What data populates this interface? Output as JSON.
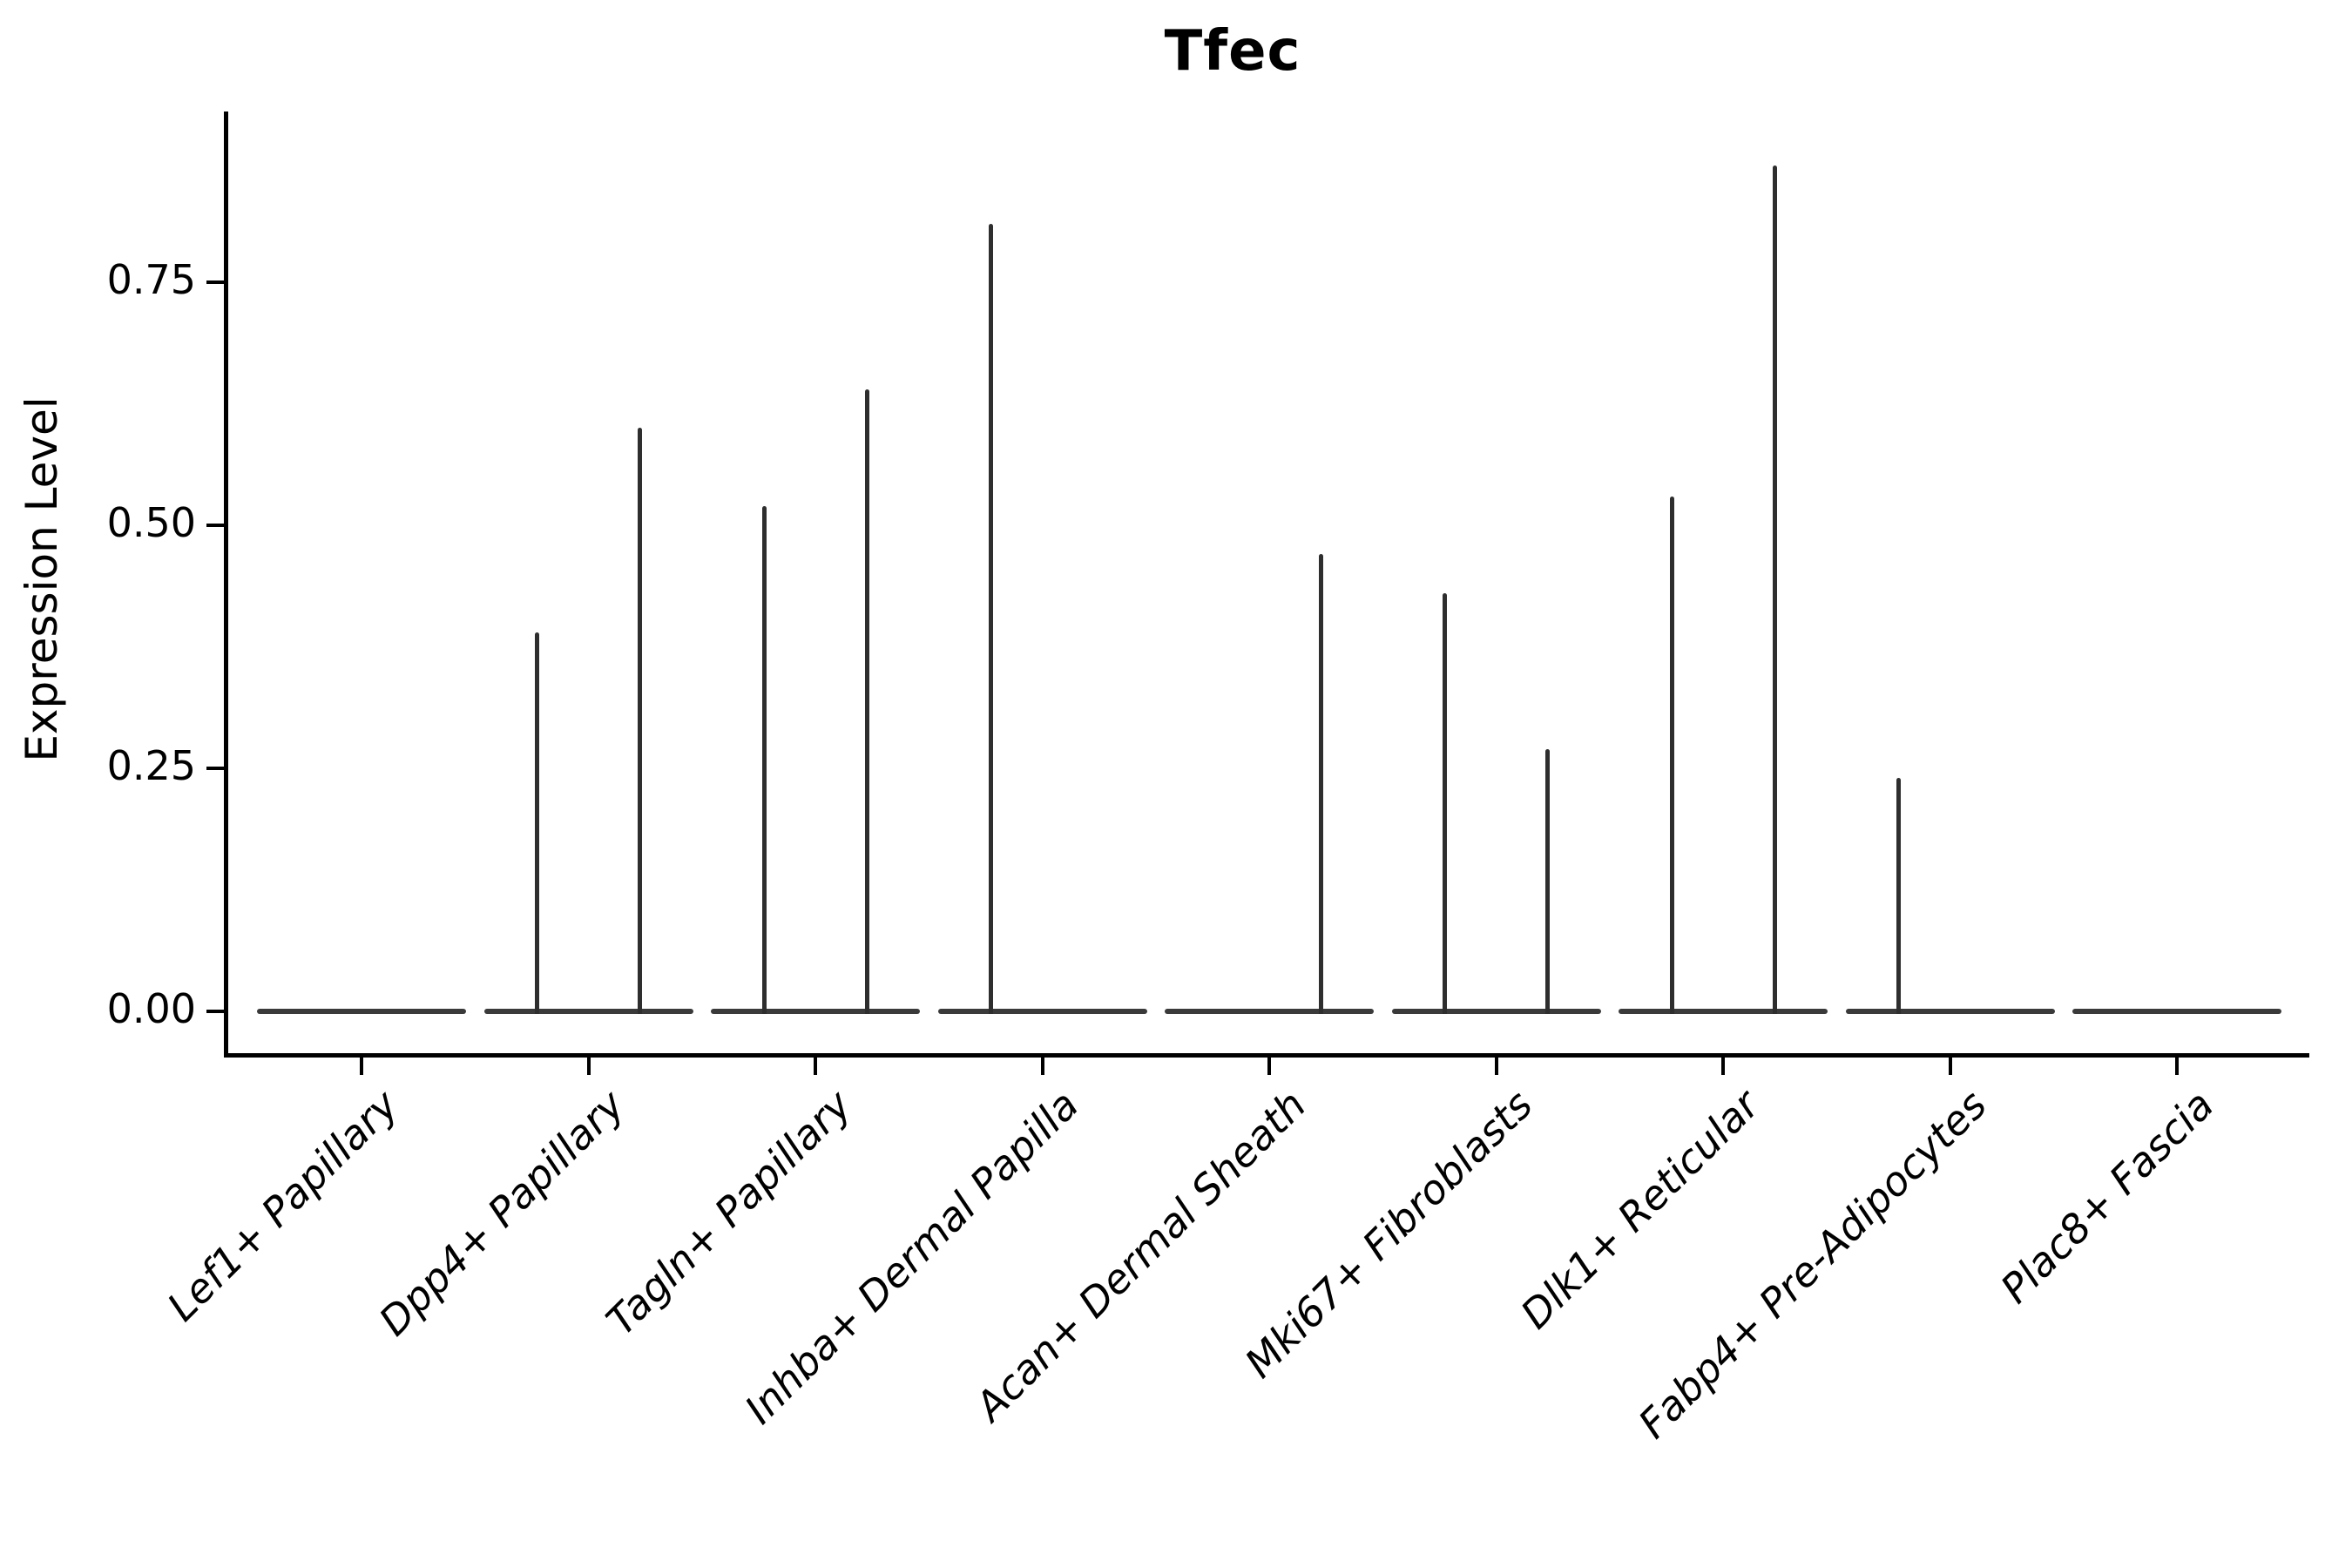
{
  "title": "Tfec",
  "chart_data": {
    "type": "violin",
    "title": "Tfec",
    "xlabel": "",
    "ylabel": "Expression Level",
    "ylim": [
      -0.04,
      0.92
    ],
    "yticks": [
      0.0,
      0.25,
      0.5,
      0.75
    ],
    "ytick_labels": [
      "0.00",
      "0.25",
      "0.50",
      "0.75"
    ],
    "grid": false,
    "legend": "none",
    "categories": [
      "Lef1+ Papillary",
      "Dpp4+ Papillary",
      "Tagln+ Papillary",
      "Inhba+ Dermal Papilla",
      "Acan+ Dermal Sheath",
      "Mki67+ Fibroblasts",
      "Dlk1+ Reticular",
      "Fabp4+ Pre-Adipocytes",
      "Plac8+ Fascia"
    ],
    "baseline_value": 0.0,
    "series": [
      {
        "name": "left-violin-max",
        "values": [
          0,
          0.39,
          0.52,
          0.81,
          0,
          0.43,
          0.53,
          0.24,
          0
        ]
      },
      {
        "name": "right-violin-max",
        "values": [
          0,
          0.6,
          0.64,
          0,
          0.47,
          0.27,
          0.87,
          0,
          0
        ]
      }
    ],
    "colors": {
      "violin_spike": "#2e2e2e",
      "baseline_bar": "#3a3a3a",
      "axis": "#000000",
      "text": "#000000",
      "background": "#ffffff"
    },
    "x_tick_label_style": "italic, rotated 45 degrees",
    "description": "Violin plot of Tfec expression; each cell-type category shows a flat bar at 0 with up to two thin spike violins reaching the listed maxima."
  }
}
